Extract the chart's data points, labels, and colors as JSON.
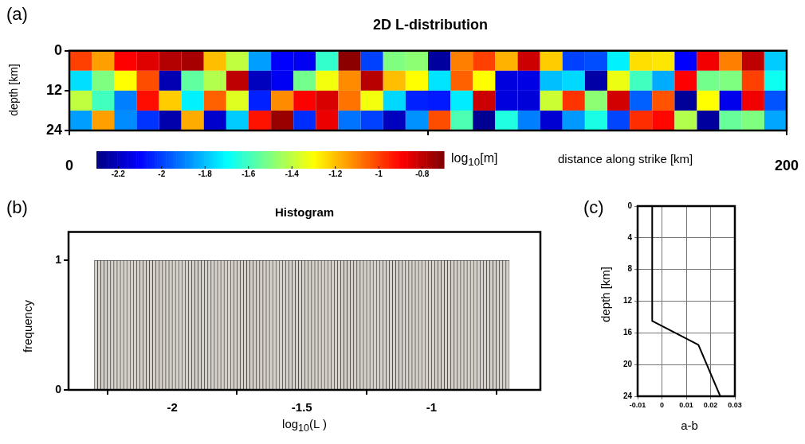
{
  "chart_data": [
    {
      "type": "heatmap",
      "title": "2D L-distribution",
      "xlabel": "distance along strike [km]",
      "ylabel": "depth [km]",
      "clabel": "log$_{10}$[m]",
      "annotations": [
        "(a)"
      ],
      "x": [
        3.125,
        9.375,
        15.625,
        21.875,
        28.125,
        34.375,
        40.625,
        46.875,
        53.125,
        59.375,
        65.625,
        71.875,
        78.125,
        84.375,
        90.625,
        96.875,
        103.125,
        109.375,
        115.625,
        121.875,
        128.125,
        134.375,
        140.625,
        146.875,
        153.125,
        159.375,
        165.625,
        171.875,
        178.125,
        184.375,
        190.625,
        196.875
      ],
      "cells": [
        [
          -1.0,
          -1.15,
          -0.9,
          -0.85,
          -0.78,
          -0.76,
          -1.2,
          -1.4,
          -1.85,
          -2.1,
          -2.12,
          -1.62,
          -0.72,
          -2.0,
          -1.5,
          -1.48,
          -2.25,
          -1.1,
          -1.0,
          -1.18,
          -0.82,
          -1.22,
          -2.0,
          -1.98,
          -1.72,
          -1.25,
          -1.26,
          -2.1,
          -0.88,
          -1.1,
          -0.8,
          -1.78
        ],
        [
          -1.75,
          -1.5,
          -1.3,
          -1.02,
          -2.22,
          -1.55,
          -1.42,
          -0.8,
          -2.2,
          -2.12,
          -1.52,
          -1.32,
          -1.12,
          -0.79,
          -1.2,
          -1.3,
          -1.74,
          -1.05,
          -1.3,
          -2.15,
          -2.14,
          -1.8,
          -1.76,
          -2.24,
          -1.33,
          -1.6,
          -1.83,
          -0.9,
          -1.52,
          -1.5,
          -1.0,
          -1.68
        ],
        [
          -1.4,
          -1.6,
          -1.9,
          -0.92,
          -1.22,
          -1.72,
          -1.05,
          -1.35,
          -2.05,
          -1.12,
          -0.9,
          -0.84,
          -1.08,
          -1.32,
          -1.76,
          -2.05,
          -2.06,
          -1.73,
          -0.82,
          -2.15,
          -2.16,
          -1.38,
          -0.98,
          -1.48,
          -0.83,
          -1.95,
          -1.03,
          -2.26,
          -1.3,
          -2.13,
          -0.88,
          -1.97
        ],
        [
          -1.85,
          -1.15,
          -1.88,
          -2.02,
          -2.23,
          -1.17,
          -2.18,
          -1.78,
          -0.93,
          -0.74,
          -2.03,
          -0.87,
          -1.92,
          -2.0,
          -2.2,
          -1.87,
          -1.02,
          -1.58,
          -2.27,
          -1.65,
          -1.9,
          -2.17,
          -1.86,
          -1.66,
          -1.99,
          -0.97,
          -0.91,
          -1.42,
          -2.25,
          -1.54,
          -1.5,
          -1.84
        ]
      ],
      "xlim": [
        0,
        200
      ],
      "xticks": [
        0,
        {
          "value": 100,
          "label": null
        },
        200
      ],
      "ylim": [
        24,
        0
      ],
      "yticks": [
        0,
        12,
        24
      ],
      "clim": [
        -2.3,
        -0.7
      ],
      "cticks": [
        -2.2,
        -2,
        -1.8,
        -1.6,
        -1.4,
        -1.2,
        -1,
        -0.8
      ]
    },
    {
      "type": "histogram",
      "title": "Histogram",
      "xlabel": "log$_{10}$(L )",
      "ylabel": "frequency",
      "annotations": [
        "(b)"
      ],
      "color": "#d6d1c8",
      "bins": [
        -2.3,
        -2.2875,
        -2.275,
        -2.2625,
        -2.25,
        -2.2375,
        -2.225,
        -2.2125,
        -2.2,
        -2.1875,
        -2.175,
        -2.1625,
        -2.15,
        -2.1375,
        -2.125,
        -2.1125,
        -2.1,
        -2.0875,
        -2.075,
        -2.0625,
        -2.05,
        -2.0375,
        -2.025,
        -2.0125,
        -2,
        -1.9875,
        -1.975,
        -1.9625,
        -1.95,
        -1.9375,
        -1.925,
        -1.9125,
        -1.9,
        -1.8875,
        -1.875,
        -1.8625,
        -1.85,
        -1.8375,
        -1.825,
        -1.8125,
        -1.8,
        -1.7875,
        -1.775,
        -1.7625,
        -1.75,
        -1.7375,
        -1.725,
        -1.7125,
        -1.7,
        -1.6875,
        -1.675,
        -1.6625,
        -1.65,
        -1.6375,
        -1.625,
        -1.6125,
        -1.6,
        -1.5875,
        -1.575,
        -1.5625,
        -1.55,
        -1.5375,
        -1.525,
        -1.5125,
        -1.5,
        -1.4875,
        -1.475,
        -1.4625,
        -1.45,
        -1.4375,
        -1.425,
        -1.4125,
        -1.4,
        -1.3875,
        -1.375,
        -1.3625,
        -1.35,
        -1.3375,
        -1.325,
        -1.3125,
        -1.3,
        -1.2875,
        -1.275,
        -1.2625,
        -1.25,
        -1.2375,
        -1.225,
        -1.2125,
        -1.2,
        -1.1875,
        -1.175,
        -1.1625,
        -1.15,
        -1.1375,
        -1.125,
        -1.1125,
        -1.1,
        -1.0875,
        -1.075,
        -1.0625,
        -1.05,
        -1.0375,
        -1.025,
        -1.0125,
        -1,
        -0.9875,
        -0.975,
        -0.9625,
        -0.95,
        -0.9375,
        -0.925,
        -0.9125,
        -0.9,
        -0.8875,
        -0.875,
        -0.8625,
        -0.85,
        -0.8375,
        -0.825,
        -0.8125,
        -0.8,
        -0.7875,
        -0.775,
        -0.7625,
        -0.75,
        -0.7375,
        -0.725,
        -0.7125,
        -0.7
      ],
      "values": [
        1,
        1,
        1,
        1,
        1,
        1,
        1,
        1,
        1,
        1,
        1,
        1,
        1,
        1,
        1,
        1,
        1,
        1,
        1,
        1,
        1,
        1,
        1,
        1,
        1,
        1,
        1,
        1,
        1,
        1,
        1,
        1,
        1,
        1,
        1,
        1,
        1,
        1,
        1,
        1,
        1,
        1,
        1,
        1,
        1,
        1,
        1,
        1,
        1,
        1,
        1,
        1,
        1,
        1,
        1,
        1,
        1,
        1,
        1,
        1,
        1,
        1,
        1,
        1,
        1,
        1,
        1,
        1,
        1,
        1,
        1,
        1,
        1,
        1,
        1,
        1,
        1,
        1,
        1,
        1,
        1,
        1,
        1,
        1,
        1,
        1,
        1,
        1,
        1,
        1,
        1,
        1,
        1,
        1,
        1,
        1,
        1,
        1,
        1,
        1,
        1,
        1,
        1,
        1,
        1,
        1,
        1,
        1,
        1,
        1,
        1,
        1,
        1,
        1,
        1,
        1,
        1,
        1,
        1,
        1,
        1,
        1,
        1,
        1,
        1,
        1,
        1,
        1
      ],
      "xlim": [
        -2.4,
        -0.58
      ],
      "xticks": [
        -2,
        -1.5,
        -1
      ],
      "ylim": [
        0,
        1.22
      ],
      "yticks": [
        0,
        1
      ]
    },
    {
      "type": "line",
      "xlabel": "a-b",
      "ylabel": "depth [km]",
      "annotations": [
        "(c)"
      ],
      "grid": true,
      "series": [
        {
          "color": "#000000",
          "x": [
            -0.004,
            -0.004,
            0.015,
            0.024
          ],
          "values": [
            0,
            14.5,
            17.5,
            24
          ]
        }
      ],
      "xlim": [
        -0.01,
        0.03
      ],
      "xticks": [
        -0.01,
        0,
        0.01,
        0.02,
        0.03
      ],
      "ylim": [
        24,
        0
      ],
      "yticks": [
        0,
        4,
        8,
        12,
        16,
        20,
        24
      ]
    }
  ]
}
